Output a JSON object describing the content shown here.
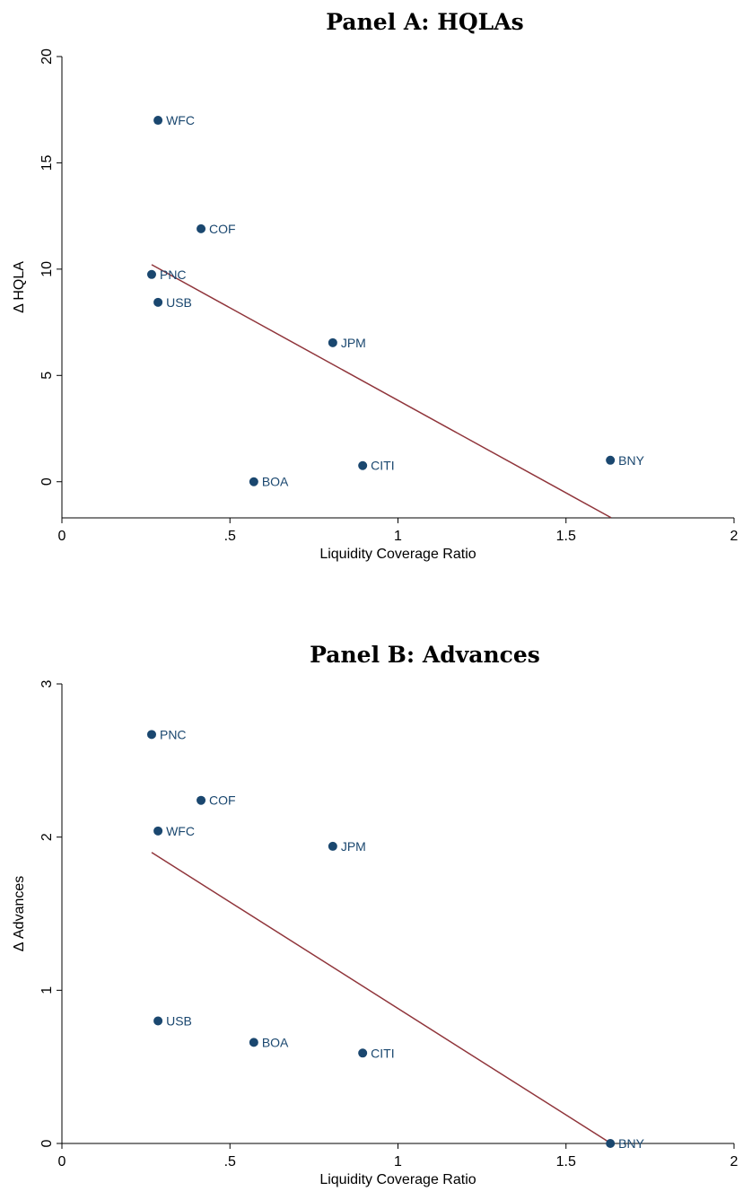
{
  "chart_data": [
    {
      "type": "scatter",
      "title": "Panel A: HQLAs",
      "x_label": "Liquidity Coverage Ratio",
      "y_label": "Δ HQLA",
      "point_labels": [
        "WFC",
        "COF",
        "PNC",
        "USB",
        "JPM",
        "BOA",
        "CITI",
        "BNY"
      ],
      "x": [
        0.286,
        0.414,
        0.267,
        0.286,
        0.806,
        0.571,
        0.895,
        1.632
      ],
      "values": [
        17.0,
        11.9,
        9.75,
        8.44,
        6.54,
        0,
        0.76,
        1.01
      ],
      "color": "#1a476f",
      "fit": {
        "x": [
          0.267,
          1.634
        ],
        "y": [
          10.21,
          -1.69
        ],
        "color": "#90353b"
      },
      "xlim": [
        0,
        2
      ],
      "xticks": [
        0,
        {
          "value": 0.5,
          "label": ".5"
        },
        1,
        1.5,
        2
      ],
      "ylim": [
        -1.7,
        20
      ],
      "yticks": [
        0,
        5,
        10,
        15,
        20
      ]
    },
    {
      "type": "scatter",
      "title": "Panel B: Advances",
      "x_label": "Liquidity Coverage Ratio",
      "y_label": "Δ Advances",
      "point_labels": [
        "PNC",
        "COF",
        "WFC",
        "JPM",
        "USB",
        "BOA",
        "CITI",
        "BNY"
      ],
      "x": [
        0.267,
        0.414,
        0.286,
        0.806,
        0.286,
        0.571,
        0.895,
        1.632
      ],
      "values": [
        2.67,
        2.24,
        2.04,
        1.94,
        0.8,
        0.66,
        0.59,
        0
      ],
      "color": "#1a476f",
      "fit": {
        "x": [
          0.267,
          1.634
        ],
        "y": [
          1.9,
          0
        ],
        "color": "#90353b"
      },
      "xlim": [
        0,
        2
      ],
      "xticks": [
        0,
        {
          "value": 0.5,
          "label": ".5"
        },
        1,
        1.5,
        2
      ],
      "ylim": [
        0,
        3
      ],
      "yticks": [
        0,
        1,
        2,
        3
      ]
    }
  ]
}
